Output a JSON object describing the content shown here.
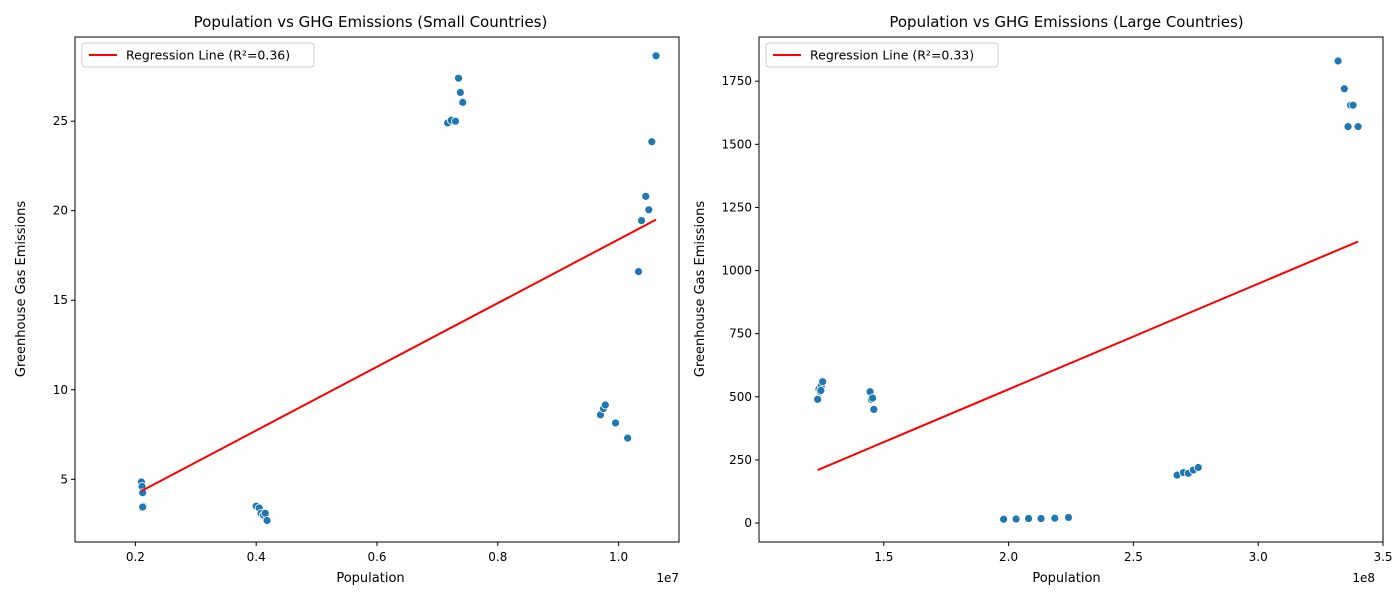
{
  "colors": {
    "point": "#1f77b4",
    "regression": "#ff0000",
    "axis": "#000000",
    "background": "#ffffff"
  },
  "chart_data": [
    {
      "type": "scatter",
      "title": "Population vs GHG Emissions (Small Countries)",
      "xlabel": "Population",
      "ylabel": "Greenhouse Gas Emissions",
      "x_offset_label": "1e7",
      "xlim": [
        1000000.0,
        11000000.0
      ],
      "ylim": [
        1.5,
        29.7
      ],
      "xticks": [
        2000000,
        4000000,
        6000000,
        8000000,
        10000000
      ],
      "xtick_labels": [
        "0.2",
        "0.4",
        "0.6",
        "0.8",
        "1.0"
      ],
      "yticks": [
        5,
        10,
        15,
        20,
        25
      ],
      "ytick_labels": [
        "5",
        "10",
        "15",
        "20",
        "25"
      ],
      "grid": false,
      "legend_position": "top-left",
      "series": [
        {
          "kind": "points",
          "points": [
            [
              2100000,
              4.85
            ],
            [
              2110000,
              4.6
            ],
            [
              2120000,
              4.25
            ],
            [
              2130000,
              3.5
            ],
            [
              2120000,
              3.45
            ],
            [
              4000000,
              3.5
            ],
            [
              4050000,
              3.4
            ],
            [
              4080000,
              3.1
            ],
            [
              4120000,
              3.0
            ],
            [
              4150000,
              3.1
            ],
            [
              4180000,
              2.7
            ],
            [
              7170000,
              24.9
            ],
            [
              7230000,
              25.05
            ],
            [
              7300000,
              25.0
            ],
            [
              7350000,
              27.4
            ],
            [
              7380000,
              26.6
            ],
            [
              7420000,
              26.05
            ],
            [
              9700000,
              8.6
            ],
            [
              9750000,
              8.95
            ],
            [
              9780000,
              9.15
            ],
            [
              9950000,
              8.15
            ],
            [
              10150000,
              7.3
            ],
            [
              10330000,
              16.6
            ],
            [
              10380000,
              19.45
            ],
            [
              10450000,
              20.8
            ],
            [
              10500000,
              20.05
            ],
            [
              10550000,
              23.85
            ],
            [
              10620000,
              28.65
            ]
          ]
        },
        {
          "kind": "line",
          "name": "Regression Line (R²=0.36)",
          "points": [
            [
              2100000,
              4.35
            ],
            [
              10620000,
              19.5
            ]
          ]
        }
      ]
    },
    {
      "type": "scatter",
      "title": "Population vs GHG Emissions (Large Countries)",
      "xlabel": "Population",
      "ylabel": "Greenhouse Gas Emissions",
      "x_offset_label": "1e8",
      "xlim": [
        100000000.0,
        350000000.0
      ],
      "ylim": [
        -75,
        1925
      ],
      "xticks": [
        150000000,
        200000000,
        250000000,
        300000000,
        350000000
      ],
      "xtick_labels": [
        "1.5",
        "2.0",
        "2.5",
        "3.0",
        "3.5"
      ],
      "yticks": [
        0,
        250,
        500,
        750,
        1000,
        1250,
        1500,
        1750
      ],
      "ytick_labels": [
        "0",
        "250",
        "500",
        "750",
        "1000",
        "1250",
        "1500",
        "1750"
      ],
      "grid": false,
      "legend_position": "top-left",
      "series": [
        {
          "kind": "points",
          "points": [
            [
              123500000,
              490
            ],
            [
              124000000,
              530
            ],
            [
              124500000,
              520
            ],
            [
              125000000,
              545
            ],
            [
              125500000,
              560
            ],
            [
              124800000,
              525
            ],
            [
              144500000,
              520
            ],
            [
              145000000,
              490
            ],
            [
              145500000,
              495
            ],
            [
              146000000,
              450
            ],
            [
              198000000,
              15
            ],
            [
              203000000,
              16
            ],
            [
              208000000,
              18
            ],
            [
              213000000,
              18
            ],
            [
              218500000,
              19
            ],
            [
              224000000,
              22
            ],
            [
              267500000,
              190
            ],
            [
              270000000,
              200
            ],
            [
              272000000,
              197
            ],
            [
              274000000,
              210
            ],
            [
              276000000,
              220
            ],
            [
              332000000,
              1830
            ],
            [
              334500000,
              1720
            ],
            [
              336000000,
              1570
            ],
            [
              337000000,
              1655
            ],
            [
              338000000,
              1655
            ],
            [
              340000000,
              1570
            ]
          ]
        },
        {
          "kind": "line",
          "name": "Regression Line (R²=0.33)",
          "points": [
            [
              123500000,
              210
            ],
            [
              340000000,
              1115
            ]
          ]
        }
      ]
    }
  ]
}
